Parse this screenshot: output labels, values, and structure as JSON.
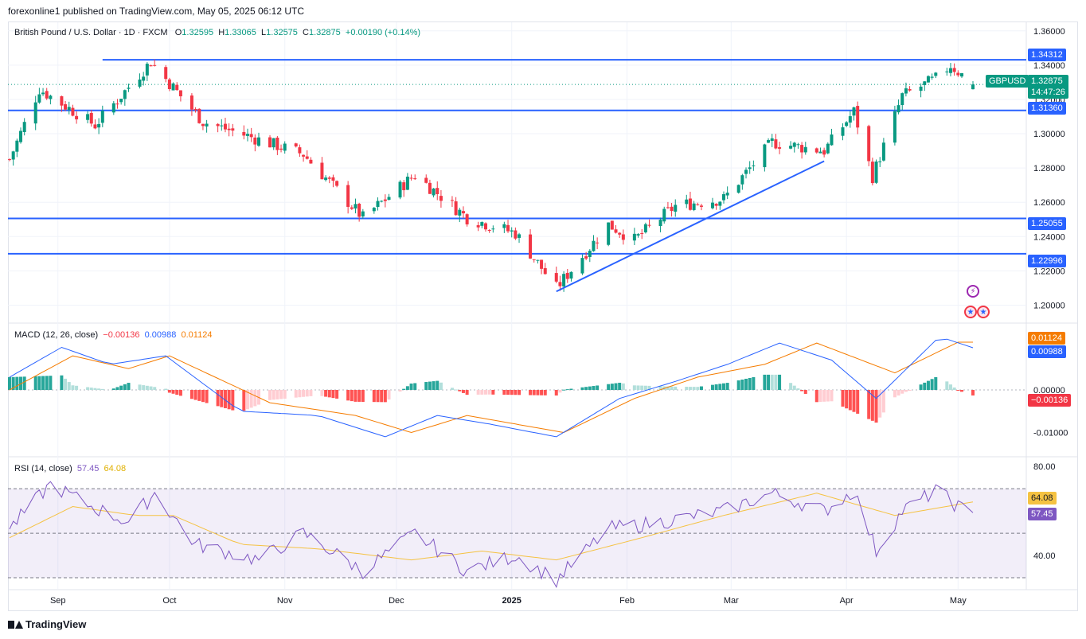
{
  "header": {
    "published": "forexonline1 published on TradingView.com, May 05, 2025 06:12 UTC"
  },
  "legend_main": {
    "symbol": "British Pound / U.S. Dollar · 1D · FXCM",
    "o_label": "O",
    "o": "1.32595",
    "h_label": "H",
    "h": "1.33065",
    "l_label": "L",
    "l": "1.32575",
    "c_label": "C",
    "c": "1.32875",
    "change": "+0.00190 (+0.14%)"
  },
  "legend_macd": {
    "label": "MACD (12, 26, close)",
    "hist": "−0.00136",
    "macd": "0.00988",
    "signal": "0.01124"
  },
  "legend_rsi": {
    "label": "RSI (14, close)",
    "rsi": "57.45",
    "ma": "64.08"
  },
  "price_tags": {
    "symbol": "GBPUSD",
    "last": "1.32875",
    "countdown": "14:47:26",
    "lines": [
      "1.34312",
      "1.31360",
      "1.25055",
      "1.22996"
    ],
    "macd_signal": "0.01124",
    "macd_line": "0.00988",
    "macd_hist": "−0.00136",
    "rsi_ma": "64.08",
    "rsi": "57.45"
  },
  "footer": {
    "brand": "TradingView"
  },
  "colors": {
    "up": "#089981",
    "down": "#f23645",
    "line": "#2962ff",
    "signal": "#f57c00",
    "rsi": "#7e57c2",
    "rsi_ma": "#f5c242"
  },
  "chart_data": [
    {
      "type": "candlestick",
      "title": "British Pound / U.S. Dollar · 1D · FXCM",
      "ylim": [
        1.19,
        1.365
      ],
      "y_ticks": [
        "1.36000",
        "1.34000",
        "1.32000",
        "1.30000",
        "1.28000",
        "1.26000",
        "1.24000",
        "1.22000",
        "1.20000"
      ],
      "x_ticks": [
        "Sep",
        "Oct",
        "Nov",
        "Dec",
        "2025",
        "Feb",
        "Mar",
        "Apr",
        "May"
      ],
      "horizontal_levels": [
        1.34312,
        1.3136,
        1.25055,
        1.22996
      ],
      "trendline": [
        [
          "2025-01-13",
          1.208
        ],
        [
          "2025-03-26",
          1.284
        ]
      ],
      "anchors": [
        [
          "2024-08-19",
          1.285
        ],
        [
          "2024-08-27",
          1.326
        ],
        [
          "2024-09-11",
          1.305
        ],
        [
          "2024-09-26",
          1.342
        ],
        [
          "2024-10-10",
          1.307
        ],
        [
          "2024-10-23",
          1.298
        ],
        [
          "2024-11-06",
          1.288
        ],
        [
          "2024-11-22",
          1.251
        ],
        [
          "2024-12-06",
          1.276
        ],
        [
          "2024-12-20",
          1.251
        ],
        [
          "2025-01-02",
          1.242
        ],
        [
          "2025-01-13",
          1.21
        ],
        [
          "2025-01-27",
          1.247
        ],
        [
          "2025-02-03",
          1.238
        ],
        [
          "2025-02-14",
          1.258
        ],
        [
          "2025-02-27",
          1.262
        ],
        [
          "2025-03-12",
          1.295
        ],
        [
          "2025-03-26",
          1.29
        ],
        [
          "2025-04-03",
          1.313
        ],
        [
          "2025-04-08",
          1.275
        ],
        [
          "2025-04-16",
          1.322
        ],
        [
          "2025-04-25",
          1.332
        ],
        [
          "2025-04-29",
          1.34
        ],
        [
          "2025-05-05",
          1.3287
        ]
      ],
      "last": {
        "open": 1.32595,
        "high": 1.33065,
        "low": 1.32575,
        "close": 1.32875
      }
    },
    {
      "type": "line",
      "title": "MACD (12, 26, close)",
      "y_ticks": [
        "0.00000",
        "-0.01000"
      ],
      "ylim": [
        -0.0155,
        0.0155
      ],
      "macd_anchors": [
        [
          "2024-08-19",
          0.003
        ],
        [
          "2024-09-02",
          0.01
        ],
        [
          "2024-09-15",
          0.006
        ],
        [
          "2024-09-30",
          0.008
        ],
        [
          "2024-10-20",
          -0.005
        ],
        [
          "2024-11-10",
          -0.006
        ],
        [
          "2024-11-28",
          -0.011
        ],
        [
          "2024-12-12",
          -0.006
        ],
        [
          "2024-12-26",
          -0.008
        ],
        [
          "2025-01-13",
          -0.011
        ],
        [
          "2025-01-30",
          -0.002
        ],
        [
          "2025-02-14",
          0.002
        ],
        [
          "2025-02-28",
          0.006
        ],
        [
          "2025-03-14",
          0.011
        ],
        [
          "2025-03-28",
          0.007
        ],
        [
          "2025-04-09",
          -0.002
        ],
        [
          "2025-04-26",
          0.0125
        ],
        [
          "2025-05-05",
          0.0099
        ]
      ],
      "signal_anchors": [
        [
          "2024-08-19",
          0.0
        ],
        [
          "2024-09-05",
          0.008
        ],
        [
          "2024-09-20",
          0.005
        ],
        [
          "2024-10-01",
          0.008
        ],
        [
          "2024-10-28",
          -0.003
        ],
        [
          "2024-11-20",
          -0.006
        ],
        [
          "2024-12-05",
          -0.01
        ],
        [
          "2024-12-20",
          -0.006
        ],
        [
          "2025-01-15",
          -0.01
        ],
        [
          "2025-02-03",
          -0.002
        ],
        [
          "2025-02-20",
          0.003
        ],
        [
          "2025-03-10",
          0.006
        ],
        [
          "2025-03-24",
          0.011
        ],
        [
          "2025-04-14",
          0.004
        ],
        [
          "2025-05-01",
          0.0112
        ],
        [
          "2025-05-05",
          0.0112
        ]
      ]
    },
    {
      "type": "line",
      "title": "RSI (14, close)",
      "y_ticks": [
        "80.00",
        "40.00"
      ],
      "ylim": [
        25,
        84
      ],
      "bands": [
        70,
        50,
        30
      ],
      "rsi_anchors": [
        [
          "2024-08-19",
          52
        ],
        [
          "2024-08-30",
          72
        ],
        [
          "2024-09-10",
          62
        ],
        [
          "2024-09-20",
          55
        ],
        [
          "2024-09-27",
          68
        ],
        [
          "2024-10-08",
          45
        ],
        [
          "2024-10-25",
          38
        ],
        [
          "2024-11-06",
          50
        ],
        [
          "2024-11-22",
          33
        ],
        [
          "2024-12-06",
          50
        ],
        [
          "2024-12-20",
          33
        ],
        [
          "2025-01-02",
          40
        ],
        [
          "2025-01-13",
          29
        ],
        [
          "2025-01-27",
          52
        ],
        [
          "2025-02-10",
          55
        ],
        [
          "2025-02-27",
          60
        ],
        [
          "2025-03-12",
          68
        ],
        [
          "2025-03-26",
          60
        ],
        [
          "2025-04-03",
          69
        ],
        [
          "2025-04-09",
          42
        ],
        [
          "2025-04-16",
          60
        ],
        [
          "2025-04-25",
          69
        ],
        [
          "2025-05-05",
          57.45
        ]
      ],
      "ma_anchors": [
        [
          "2024-08-19",
          48
        ],
        [
          "2024-09-05",
          62
        ],
        [
          "2024-09-22",
          58
        ],
        [
          "2024-10-02",
          58
        ],
        [
          "2024-10-20",
          45
        ],
        [
          "2024-11-10",
          43
        ],
        [
          "2024-12-05",
          38
        ],
        [
          "2024-12-24",
          42
        ],
        [
          "2025-01-13",
          38
        ],
        [
          "2025-02-05",
          48
        ],
        [
          "2025-02-27",
          58
        ],
        [
          "2025-03-24",
          68
        ],
        [
          "2025-04-14",
          58
        ],
        [
          "2025-05-05",
          64.08
        ]
      ]
    }
  ]
}
